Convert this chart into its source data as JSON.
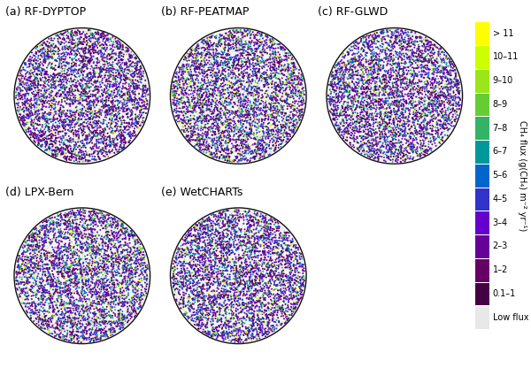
{
  "panels": [
    {
      "label": "(a) RF-DYPTOP",
      "row": 0,
      "col": 0
    },
    {
      "label": "(b) RF-PEATMAP",
      "row": 0,
      "col": 1
    },
    {
      "label": "(c) RF-GLWD",
      "row": 0,
      "col": 2
    },
    {
      "label": "(d) LPX-Bern",
      "row": 1,
      "col": 0
    },
    {
      "label": "(e) WetCHARTs",
      "row": 1,
      "col": 1
    }
  ],
  "colorbar_labels": [
    "> 11",
    "10–11",
    "9–10",
    "8–9",
    "7–8",
    "6–7",
    "5–6",
    "4–5",
    "3–4",
    "2–3",
    "1–2",
    "0.1–1",
    "Low flux"
  ],
  "colorbar_colors": [
    "#ffff00",
    "#ccff00",
    "#99e619",
    "#66cc33",
    "#33b366",
    "#009999",
    "#0066cc",
    "#3333cc",
    "#6600cc",
    "#660099",
    "#660066",
    "#440044",
    "#e8e8e8"
  ],
  "colorbar_ylabel": "CH₄ flux (g(CH₄) m⁻² yr⁻¹)",
  "bg_color": "#ffffff",
  "title_fontsize": 9,
  "colorbar_fontsize": 7,
  "panel_probs": [
    [
      0.01,
      0.01,
      0.02,
      0.03,
      0.04,
      0.05,
      0.08,
      0.1,
      0.15,
      0.18,
      0.18,
      0.15
    ],
    [
      0.02,
      0.02,
      0.03,
      0.04,
      0.05,
      0.06,
      0.08,
      0.1,
      0.14,
      0.16,
      0.16,
      0.14
    ],
    [
      0.01,
      0.01,
      0.02,
      0.03,
      0.04,
      0.06,
      0.09,
      0.12,
      0.15,
      0.17,
      0.16,
      0.14
    ],
    [
      0.01,
      0.02,
      0.03,
      0.04,
      0.05,
      0.07,
      0.09,
      0.11,
      0.14,
      0.16,
      0.16,
      0.12
    ],
    [
      0.01,
      0.02,
      0.02,
      0.03,
      0.04,
      0.06,
      0.09,
      0.12,
      0.15,
      0.17,
      0.16,
      0.13
    ]
  ]
}
